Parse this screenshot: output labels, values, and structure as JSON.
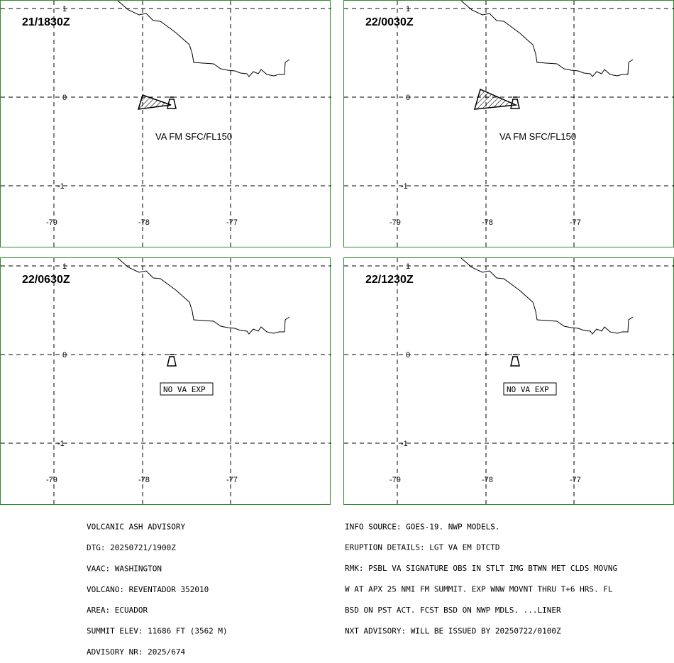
{
  "map": {
    "lat_ticks": [
      "1",
      "0",
      "-1"
    ],
    "lon_ticks": [
      "-79",
      "-78",
      "-77"
    ],
    "panels": [
      {
        "time": "21/1830Z",
        "label": "VA FM SFC/FL150",
        "label_boxed": false,
        "has_ash": true
      },
      {
        "time": "22/0030Z",
        "label": "VA FM SFC/FL150",
        "label_boxed": false,
        "has_ash": true
      },
      {
        "time": "22/0630Z",
        "label": "NO VA EXP",
        "label_boxed": true,
        "has_ash": false
      },
      {
        "time": "22/1230Z",
        "label": "NO VA EXP",
        "label_boxed": true,
        "has_ash": false
      }
    ],
    "colors": {
      "frame": "#2e8b2e",
      "lines": "#000000"
    }
  },
  "advisory": {
    "left": [
      "VOLCANIC ASH ADVISORY",
      "DTG: 20250721/1900Z",
      "VAAC: WASHINGTON",
      "VOLCANO: REVENTADOR 352010",
      "AREA: ECUADOR",
      "SUMMIT ELEV: 11686 FT (3562 M)",
      "ADVISORY NR: 2025/674"
    ],
    "right": [
      "INFO SOURCE: GOES-19. NWP MODELS.",
      "ERUPTION DETAILS: LGT VA EM DTCTD",
      "RMK: PSBL VA SIGNATURE OBS IN STLT IMG BTWN MET CLDS MOVNG",
      "W AT APX 25 NMI FM SUMMIT. EXP WNW MOVNT THRU T+6 HRS. FL",
      "BSD ON PST ACT. FCST BSD ON NWP MDLS. ...LINER",
      "NXT ADVISORY: WILL BE ISSUED BY 20250722/0100Z"
    ]
  }
}
